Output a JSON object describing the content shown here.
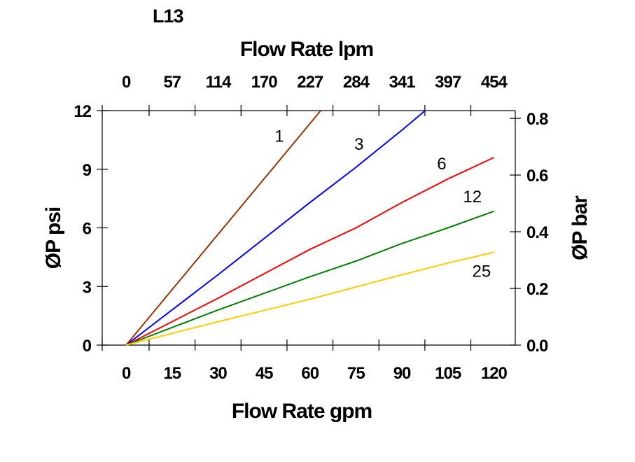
{
  "chart_data": {
    "type": "line",
    "title": "L13",
    "xlabel": "Flow Rate gpm",
    "x2label": "Flow Rate lpm",
    "ylabel": "ØP psi",
    "y2label": "ØP bar",
    "xlim": [
      -7.8,
      127
    ],
    "ylim": [
      0,
      12
    ],
    "x_ticks": [
      "0",
      "15",
      "30",
      "45",
      "60",
      "75",
      "90",
      "105",
      "120"
    ],
    "x2_ticks": [
      "0",
      "57",
      "114",
      "170",
      "227",
      "284",
      "341",
      "397",
      "454"
    ],
    "y_ticks": [
      "0",
      "3",
      "6",
      "9",
      "12"
    ],
    "y2_ticks": [
      "0.0",
      "0.2",
      "0.4",
      "0.6",
      "0.8"
    ],
    "grid": false,
    "series": [
      {
        "name": "1",
        "color": "#993300",
        "points": [
          [
            0,
            0
          ],
          [
            63.5,
            12
          ]
        ]
      },
      {
        "name": "3",
        "color": "#0000ff",
        "points": [
          [
            0,
            0
          ],
          [
            30,
            3.6
          ],
          [
            60,
            7.3
          ],
          [
            75,
            9.1
          ],
          [
            90,
            11
          ],
          [
            97.6,
            12
          ]
        ]
      },
      {
        "name": "6",
        "color": "#ff0000",
        "points": [
          [
            0,
            0
          ],
          [
            15,
            1.2
          ],
          [
            30,
            2.4
          ],
          [
            60,
            4.9
          ],
          [
            75,
            6.0
          ],
          [
            90,
            7.3
          ],
          [
            105,
            8.5
          ],
          [
            120,
            9.6
          ]
        ]
      },
      {
        "name": "12",
        "color": "#008000",
        "points": [
          [
            0,
            0
          ],
          [
            30,
            1.8
          ],
          [
            60,
            3.5
          ],
          [
            75,
            4.3
          ],
          [
            90,
            5.2
          ],
          [
            105,
            6.0
          ],
          [
            120,
            6.85
          ]
        ]
      },
      {
        "name": "25",
        "color": "#ffcc00",
        "points": [
          [
            0,
            0
          ],
          [
            30,
            1.2
          ],
          [
            60,
            2.35
          ],
          [
            90,
            3.6
          ],
          [
            105,
            4.2
          ],
          [
            120,
            4.75
          ]
        ]
      }
    ]
  }
}
